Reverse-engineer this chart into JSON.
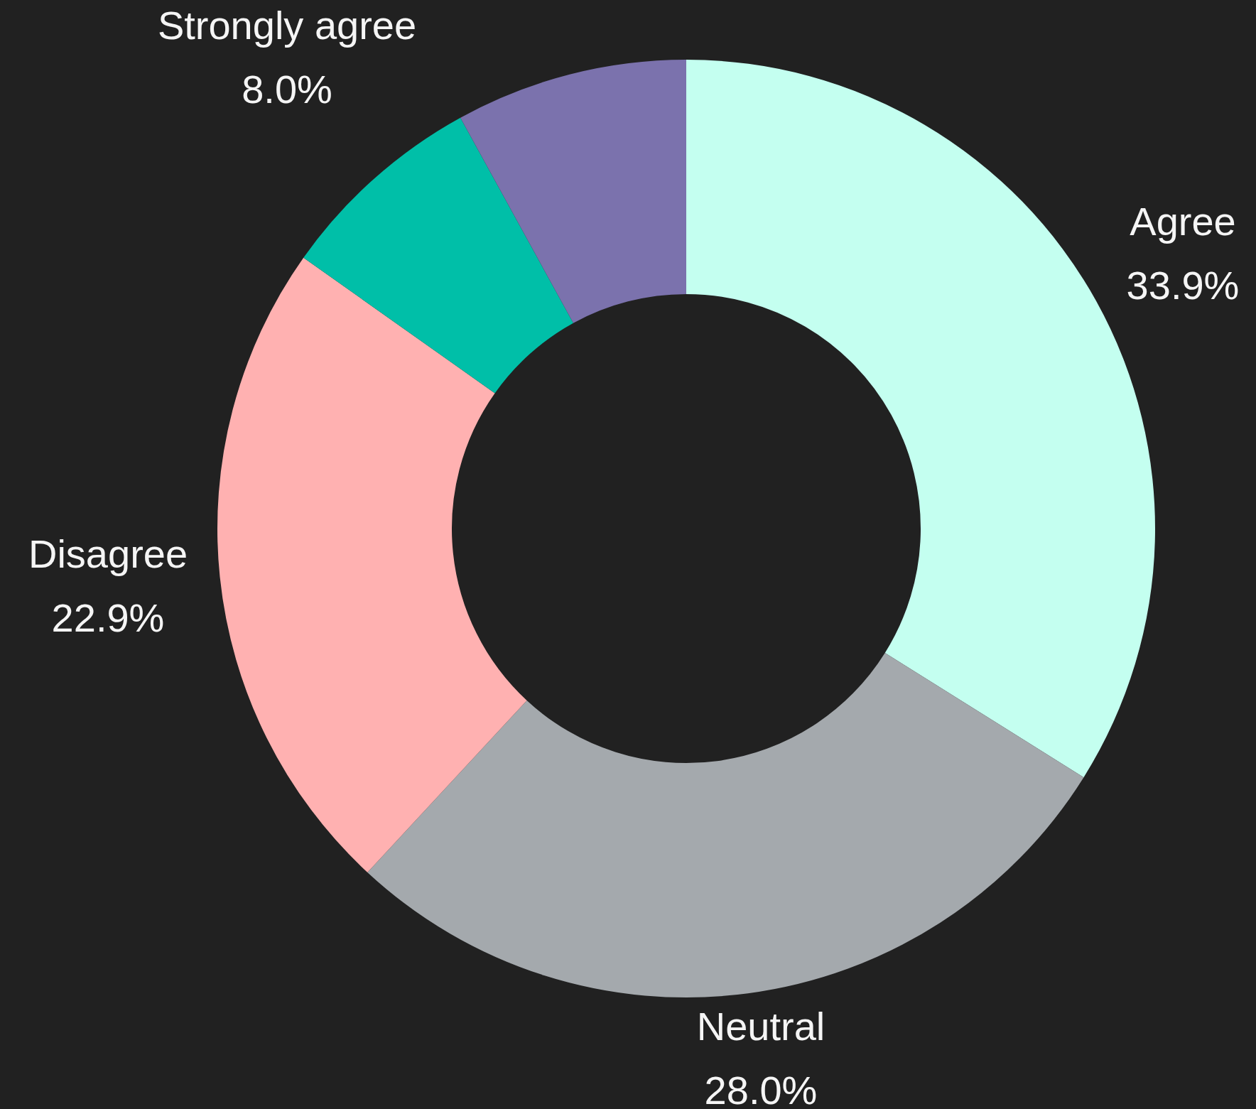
{
  "chart_data": {
    "type": "donut",
    "categories": [
      "Agree",
      "Neutral",
      "Disagree",
      null,
      "Strongly agree"
    ],
    "values": [
      33.9,
      28.0,
      22.9,
      7.2,
      8.0
    ],
    "colors": [
      "#c4fff0",
      "#a4a9ad",
      "#ffb1b1",
      "#00bfa8",
      "#7b72ad"
    ],
    "value_labels": [
      "33.9%",
      "28.0%",
      "22.9%",
      null,
      "8.0%"
    ]
  }
}
